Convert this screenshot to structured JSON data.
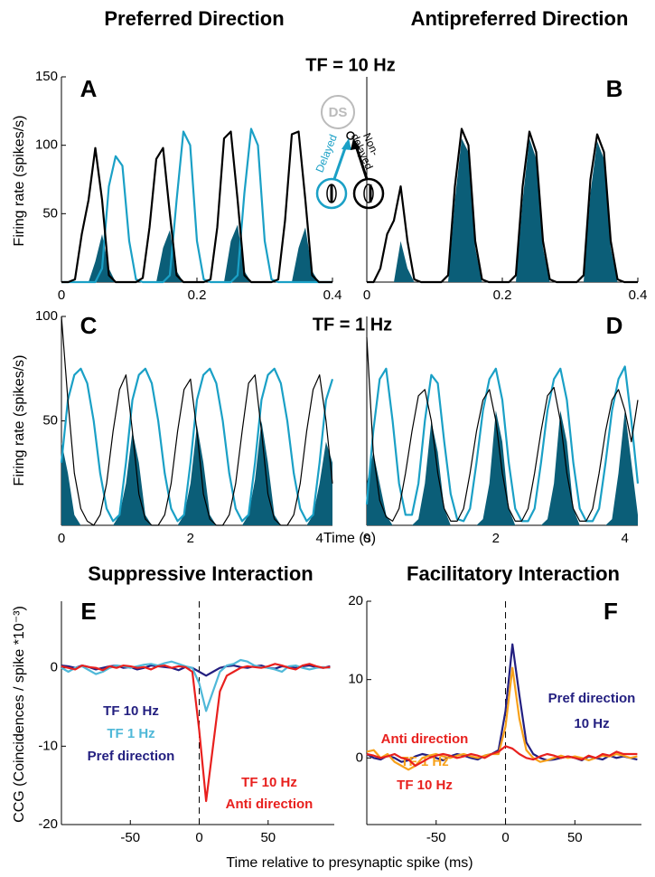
{
  "figure": {
    "col_title_left": "Preferred Direction",
    "col_title_right": "Antipreferred Direction",
    "row_title_10": "TF = 10 Hz",
    "row_title_1": "TF = 1 Hz",
    "title_suppressive": "Suppressive Interaction",
    "title_facilitatory": "Facilitatory Interaction",
    "xlabel_time": "Time (s)",
    "xlabel_ccg": "Time relative to presynaptic spike (ms)"
  },
  "inset": {
    "label": "DS",
    "delayed": "Delayed",
    "nondelayed": [
      "Non-",
      "delayed"
    ]
  },
  "chart_data": [
    {
      "type": "line",
      "letter": "A",
      "ylabel": "Firing rate (spikes/s)",
      "xlim": [
        0,
        0.4
      ],
      "ylim": [
        0,
        150
      ],
      "xticks": [
        0,
        0.2,
        0.4
      ],
      "yticks": [
        50,
        100,
        150
      ],
      "x": [
        0,
        0.01,
        0.02,
        0.03,
        0.04,
        0.05,
        0.06,
        0.07,
        0.08,
        0.09,
        0.1,
        0.11,
        0.12,
        0.13,
        0.14,
        0.15,
        0.16,
        0.17,
        0.18,
        0.19,
        0.2,
        0.21,
        0.22,
        0.23,
        0.24,
        0.25,
        0.26,
        0.27,
        0.28,
        0.29,
        0.3,
        0.31,
        0.32,
        0.33,
        0.34,
        0.35,
        0.36,
        0.37,
        0.38,
        0.39,
        0.4
      ],
      "series": [
        {
          "color": "#0b5e78",
          "fill": true,
          "values": [
            0,
            0,
            0,
            0,
            0,
            15,
            35,
            10,
            0,
            0,
            0,
            0,
            0,
            0,
            0,
            25,
            38,
            8,
            0,
            0,
            0,
            0,
            0,
            0,
            0,
            30,
            42,
            8,
            0,
            0,
            0,
            0,
            0,
            0,
            0,
            25,
            40,
            8,
            0,
            0,
            0
          ]
        },
        {
          "color": "#1aa0c6",
          "values": [
            0,
            0,
            0,
            0,
            0,
            0,
            10,
            70,
            92,
            85,
            30,
            2,
            0,
            0,
            0,
            0,
            5,
            60,
            110,
            100,
            30,
            2,
            0,
            0,
            0,
            0,
            5,
            65,
            112,
            100,
            30,
            2,
            0,
            0,
            0,
            0,
            0,
            0,
            0,
            0,
            0
          ]
        },
        {
          "color": "#000000",
          "values": [
            0,
            0,
            2,
            35,
            60,
            98,
            60,
            5,
            0,
            0,
            0,
            0,
            3,
            40,
            90,
            98,
            50,
            5,
            0,
            0,
            0,
            0,
            2,
            40,
            105,
            110,
            60,
            5,
            0,
            0,
            0,
            0,
            2,
            45,
            108,
            110,
            60,
            5,
            0,
            0,
            0
          ]
        }
      ]
    },
    {
      "type": "line",
      "letter": "B",
      "xlim": [
        0,
        0.4
      ],
      "ylim": [
        0,
        150
      ],
      "xticks": [
        0,
        0.2,
        0.4
      ],
      "x": [
        0,
        0.01,
        0.02,
        0.03,
        0.04,
        0.05,
        0.06,
        0.07,
        0.08,
        0.09,
        0.1,
        0.11,
        0.12,
        0.13,
        0.14,
        0.15,
        0.16,
        0.17,
        0.18,
        0.19,
        0.2,
        0.21,
        0.22,
        0.23,
        0.24,
        0.25,
        0.26,
        0.27,
        0.28,
        0.29,
        0.3,
        0.31,
        0.32,
        0.33,
        0.34,
        0.35,
        0.36,
        0.37,
        0.38,
        0.39,
        0.4
      ],
      "series": [
        {
          "color": "#0b5e78",
          "fill": true,
          "values": [
            0,
            0,
            0,
            0,
            0,
            30,
            10,
            0,
            0,
            0,
            0,
            0,
            0,
            60,
            105,
            95,
            25,
            0,
            0,
            0,
            0,
            0,
            0,
            60,
            105,
            90,
            25,
            0,
            0,
            0,
            0,
            0,
            0,
            65,
            103,
            90,
            25,
            0,
            0,
            0,
            0
          ]
        },
        {
          "color": "#000000",
          "values": [
            0,
            0,
            10,
            35,
            45,
            70,
            30,
            2,
            0,
            0,
            0,
            0,
            5,
            70,
            112,
            100,
            30,
            2,
            0,
            0,
            0,
            0,
            5,
            70,
            110,
            95,
            30,
            2,
            0,
            0,
            0,
            0,
            5,
            75,
            108,
            95,
            30,
            2,
            0,
            0,
            0
          ]
        }
      ]
    },
    {
      "type": "line",
      "letter": "C",
      "ylabel": "Firing rate (spikes/s)",
      "xlim": [
        0,
        4.2
      ],
      "ylim": [
        0,
        100
      ],
      "xticks": [
        0,
        2,
        4
      ],
      "yticks": [
        50,
        100
      ],
      "x": [
        0,
        0.1,
        0.2,
        0.3,
        0.4,
        0.5,
        0.6,
        0.7,
        0.8,
        0.9,
        1,
        1.1,
        1.2,
        1.3,
        1.4,
        1.5,
        1.6,
        1.7,
        1.8,
        1.9,
        2,
        2.1,
        2.2,
        2.3,
        2.4,
        2.5,
        2.6,
        2.7,
        2.8,
        2.9,
        3,
        3.1,
        3.2,
        3.3,
        3.4,
        3.5,
        3.6,
        3.7,
        3.8,
        3.9,
        4,
        4.1,
        4.2
      ],
      "series": [
        {
          "color": "#0b5e78",
          "fill": true,
          "values": [
            40,
            25,
            5,
            0,
            0,
            0,
            0,
            0,
            0,
            5,
            20,
            45,
            30,
            5,
            0,
            0,
            0,
            0,
            0,
            5,
            20,
            48,
            30,
            5,
            0,
            0,
            0,
            0,
            0,
            5,
            22,
            50,
            30,
            5,
            0,
            0,
            0,
            0,
            0,
            5,
            20,
            40,
            30
          ]
        },
        {
          "color": "#1aa0c6",
          "values": [
            30,
            60,
            72,
            75,
            68,
            50,
            25,
            8,
            2,
            5,
            30,
            60,
            72,
            75,
            68,
            50,
            25,
            8,
            2,
            5,
            30,
            60,
            72,
            75,
            68,
            50,
            25,
            8,
            2,
            5,
            30,
            60,
            72,
            75,
            68,
            50,
            25,
            8,
            2,
            5,
            30,
            60,
            70
          ]
        },
        {
          "color": "#000000",
          "thin": true,
          "values": [
            100,
            60,
            25,
            8,
            2,
            0,
            5,
            20,
            45,
            65,
            72,
            45,
            15,
            3,
            0,
            0,
            5,
            20,
            45,
            65,
            70,
            45,
            15,
            3,
            0,
            0,
            5,
            20,
            45,
            68,
            72,
            45,
            15,
            3,
            0,
            0,
            5,
            20,
            45,
            65,
            72,
            50,
            20
          ]
        }
      ]
    },
    {
      "type": "line",
      "letter": "D",
      "xlim": [
        0,
        4.2
      ],
      "ylim": [
        0,
        100
      ],
      "xticks": [
        0,
        2,
        4
      ],
      "x": [
        0,
        0.1,
        0.2,
        0.3,
        0.4,
        0.5,
        0.6,
        0.7,
        0.8,
        0.9,
        1,
        1.1,
        1.2,
        1.3,
        1.4,
        1.5,
        1.6,
        1.7,
        1.8,
        1.9,
        2,
        2.1,
        2.2,
        2.3,
        2.4,
        2.5,
        2.6,
        2.7,
        2.8,
        2.9,
        3,
        3.1,
        3.2,
        3.3,
        3.4,
        3.5,
        3.6,
        3.7,
        3.8,
        3.9,
        4,
        4.1,
        4.2
      ],
      "series": [
        {
          "color": "#0b5e78",
          "fill": true,
          "values": [
            20,
            35,
            20,
            5,
            0,
            0,
            0,
            0,
            3,
            20,
            50,
            35,
            8,
            0,
            0,
            0,
            0,
            0,
            3,
            20,
            55,
            40,
            8,
            0,
            0,
            0,
            0,
            0,
            3,
            20,
            55,
            40,
            8,
            0,
            0,
            0,
            0,
            0,
            3,
            25,
            55,
            30,
            5
          ]
        },
        {
          "color": "#1aa0c6",
          "values": [
            10,
            45,
            70,
            75,
            50,
            20,
            5,
            5,
            20,
            50,
            72,
            68,
            40,
            15,
            3,
            2,
            8,
            30,
            55,
            70,
            75,
            60,
            30,
            8,
            2,
            2,
            8,
            30,
            55,
            70,
            75,
            60,
            30,
            8,
            2,
            2,
            8,
            30,
            55,
            70,
            76,
            50,
            20
          ]
        },
        {
          "color": "#000000",
          "thin": true,
          "values": [
            90,
            35,
            12,
            4,
            2,
            8,
            25,
            45,
            62,
            65,
            50,
            25,
            8,
            2,
            2,
            8,
            25,
            45,
            60,
            65,
            50,
            25,
            8,
            2,
            2,
            8,
            25,
            45,
            62,
            66,
            50,
            25,
            8,
            2,
            2,
            8,
            25,
            45,
            60,
            65,
            55,
            40,
            60
          ]
        }
      ]
    },
    {
      "type": "line",
      "letter": "E",
      "ylabel": "CCG (Coincidences / spike  *10⁻³)",
      "xlim": [
        -100,
        98
      ],
      "ylim": [
        -20,
        8.5
      ],
      "xticks": [
        -50,
        0,
        50
      ],
      "yticks": [
        -20,
        -10,
        0
      ],
      "zero_line": true,
      "x": [
        -100,
        -95,
        -90,
        -85,
        -80,
        -75,
        -70,
        -65,
        -60,
        -55,
        -50,
        -45,
        -40,
        -35,
        -30,
        -25,
        -20,
        -15,
        -10,
        -5,
        0,
        5,
        10,
        15,
        20,
        25,
        30,
        35,
        40,
        45,
        50,
        55,
        60,
        65,
        70,
        75,
        80,
        85,
        90,
        95
      ],
      "series": [
        {
          "name": "TF 10 Hz",
          "color": "#231f80",
          "values": [
            0.3,
            0.2,
            0,
            0.3,
            0.1,
            -0.2,
            0,
            0.2,
            0.3,
            0,
            0.1,
            -0.2,
            0,
            0.3,
            0.2,
            0.1,
            0,
            -0.3,
            0.1,
            0,
            -0.5,
            -1,
            -0.5,
            0,
            0.2,
            0.3,
            0.1,
            0,
            0.2,
            0.3,
            0,
            -0.1,
            0.2,
            0.1,
            0,
            0.2,
            0.3,
            0.1,
            0,
            0.2
          ]
        },
        {
          "name": "TF 1 Hz",
          "color": "#4fb8d8",
          "values": [
            0,
            -0.5,
            0,
            0.2,
            -0.3,
            -0.8,
            -0.5,
            0,
            0.3,
            0.2,
            0,
            0.2,
            0.4,
            0.5,
            0.3,
            0.6,
            0.8,
            0.5,
            0.2,
            0,
            -2,
            -5.5,
            -3,
            -0.5,
            0.3,
            0.5,
            1,
            0.8,
            0.3,
            0.1,
            0,
            -0.2,
            -0.5,
            0.2,
            0.3,
            0,
            -0.2,
            0,
            0.1,
            0
          ]
        },
        {
          "name": "TF 10 Hz",
          "color": "#e8201e",
          "values": [
            0.2,
            0,
            -0.2,
            0.3,
            0.1,
            0,
            -0.3,
            0.2,
            0,
            0.3,
            0.2,
            0,
            0.1,
            -0.2,
            0.2,
            0.3,
            0,
            0.2,
            0.1,
            -0.5,
            -8,
            -17,
            -10,
            -3,
            -1,
            -0.5,
            0,
            0.2,
            0.1,
            0,
            0.2,
            0.5,
            0.3,
            0,
            -0.2,
            0.3,
            0.5,
            0.2,
            0,
            0.1
          ]
        }
      ],
      "annotations": [
        {
          "text": "Pref direction",
          "color": "#231f80"
        },
        {
          "text": "Anti direction",
          "color": "#e8201e"
        }
      ]
    },
    {
      "type": "line",
      "letter": "F",
      "xlim": [
        -100,
        98
      ],
      "ylim": [
        -8.5,
        20
      ],
      "xticks": [
        -50,
        0,
        50
      ],
      "yticks": [
        0,
        10,
        20
      ],
      "zero_line": true,
      "x": [
        -100,
        -95,
        -90,
        -85,
        -80,
        -75,
        -70,
        -65,
        -60,
        -55,
        -50,
        -45,
        -40,
        -35,
        -30,
        -25,
        -20,
        -15,
        -10,
        -5,
        0,
        5,
        10,
        15,
        20,
        25,
        30,
        35,
        40,
        45,
        50,
        55,
        60,
        65,
        70,
        75,
        80,
        85,
        90,
        95
      ],
      "series": [
        {
          "name": "10 Hz",
          "color": "#231f80",
          "values": [
            0.5,
            0,
            -0.2,
            0.3,
            0,
            -0.5,
            -0.3,
            0.2,
            0.5,
            0.3,
            0,
            -0.3,
            0.2,
            0.5,
            0.3,
            0,
            -0.2,
            0.3,
            0.5,
            1,
            6,
            14.5,
            8,
            2,
            0.5,
            0,
            -0.3,
            -0.2,
            0,
            0.2,
            0,
            -0.3,
            0.2,
            0,
            -0.2,
            0.3,
            0,
            0.2,
            0,
            -0.2
          ]
        },
        {
          "name": "TF 1 Hz",
          "color": "#f7a11b",
          "values": [
            0.8,
            1,
            0,
            0.5,
            -0.5,
            -1,
            -1.5,
            -1,
            0,
            0.3,
            0.5,
            0.2,
            0,
            0.3,
            0.5,
            0.2,
            0,
            0.3,
            0.5,
            0.5,
            4,
            11.5,
            5,
            1,
            0,
            -0.5,
            -0.3,
            0,
            0.3,
            0,
            0.2,
            0,
            -0.3,
            0,
            0.3,
            0.2,
            0.5,
            0.3,
            0,
            0.2
          ]
        },
        {
          "name": "TF 10 Hz",
          "color": "#e8201e",
          "values": [
            0.5,
            0.3,
            0,
            0.2,
            0.5,
            0,
            -0.2,
            -1,
            -0.5,
            0,
            0.3,
            0.5,
            0.3,
            0,
            0.2,
            0.5,
            0.3,
            0,
            0.5,
            0.8,
            1.5,
            1.2,
            0.5,
            0,
            -0.2,
            0.2,
            0.5,
            0.3,
            0,
            0.2,
            0,
            -0.2,
            0.3,
            0,
            0.5,
            0.3,
            0.8,
            0.5,
            0.5,
            0.5
          ]
        }
      ],
      "annotations": [
        {
          "text": "Pref direction",
          "color": "#231f80"
        },
        {
          "text": "Anti direction",
          "color": "#e8201e"
        }
      ]
    }
  ]
}
